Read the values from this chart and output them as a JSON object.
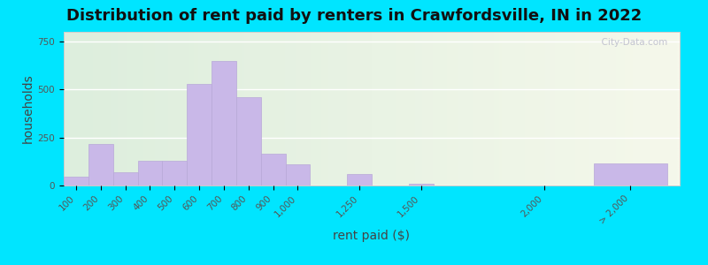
{
  "title": "Distribution of rent paid by renters in Crawfordsville, IN in 2022",
  "xlabel": "rent paid ($)",
  "ylabel": "households",
  "bar_color": "#c9b8e8",
  "bar_edgecolor": "#b8a8d8",
  "categories": [
    "100",
    "200",
    "300",
    "400",
    "500",
    "600",
    "700",
    "800",
    "900",
    "1,000",
    "1,250",
    "1,500",
    "2,000",
    "> 2,000"
  ],
  "x_left_edges": [
    100,
    200,
    300,
    400,
    500,
    600,
    700,
    800,
    900,
    1000,
    1250,
    1500,
    2000,
    2250
  ],
  "x_widths": [
    100,
    100,
    100,
    100,
    100,
    100,
    100,
    100,
    100,
    100,
    100,
    100,
    100,
    300
  ],
  "values": [
    45,
    215,
    70,
    130,
    130,
    530,
    650,
    460,
    165,
    110,
    60,
    10,
    0,
    115
  ],
  "ylim": [
    0,
    800
  ],
  "yticks": [
    0,
    250,
    500,
    750
  ],
  "xlim": [
    100,
    2600
  ],
  "bg_outer": "#00e5ff",
  "bg_left_color": "#ddeedd",
  "bg_right_color": "#f0f5e8",
  "watermark": "  City-Data.com",
  "title_fontsize": 13,
  "axis_label_fontsize": 10,
  "tick_fontsize": 7.5
}
